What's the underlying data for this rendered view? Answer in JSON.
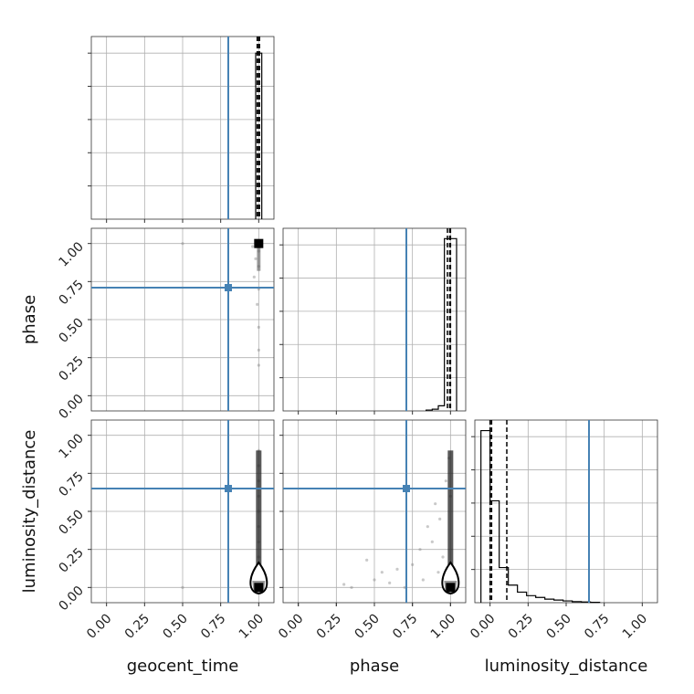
{
  "chart_data": {
    "type": "corner",
    "parameters": [
      "geocent_time",
      "phase",
      "luminosity_distance"
    ],
    "axis_range": [
      -0.1,
      1.1
    ],
    "ticks": [
      0.0,
      0.25,
      0.5,
      0.75,
      1.0
    ],
    "tick_labels": [
      "0.00",
      "0.25",
      "0.50",
      "0.75",
      "1.00"
    ],
    "truths": {
      "geocent_time": 0.8,
      "phase": 0.71,
      "luminosity_distance": 0.65
    },
    "truth_color": "#4682b4",
    "grid": true,
    "quantile_lines": {
      "geocent_time": [
        0.99,
        1.0,
        1.005
      ],
      "phase": [
        0.98,
        0.995,
        1.0
      ],
      "luminosity_distance": [
        0.0,
        0.01,
        0.11
      ]
    },
    "histograms": {
      "geocent_time": {
        "bin_edges": [
          0.98,
          1.0,
          1.02
        ],
        "counts": [
          100,
          100
        ],
        "ymax": 110
      },
      "phase": {
        "bin_edges": [
          0.84,
          0.88,
          0.92,
          0.96,
          1.0,
          1.04
        ],
        "counts": [
          0.5,
          1,
          3,
          100,
          100
        ],
        "ymax": 106
      },
      "luminosity_distance": {
        "bin_edges": [
          -0.06,
          0.0,
          0.06,
          0.12,
          0.18,
          0.24,
          0.3,
          0.36,
          0.42,
          0.48,
          0.54,
          0.6,
          0.66,
          0.72
        ],
        "counts": [
          98,
          58,
          20,
          10,
          6,
          4,
          3,
          2,
          1.5,
          1,
          0.6,
          0.4,
          0.2
        ],
        "ymax": 104
      }
    },
    "marker_points": [
      {
        "x_param": "geocent_time",
        "y_param": "phase",
        "x": 1.0,
        "y": 1.0
      },
      {
        "x_param": "geocent_time",
        "y_param": "luminosity_distance",
        "x": 1.0,
        "y": 0.0
      },
      {
        "x_param": "phase",
        "y_param": "luminosity_distance",
        "x": 1.0,
        "y": 0.0
      }
    ],
    "scatter_samples": {
      "geocent_time_phase": [
        [
          0.5,
          1.0
        ],
        [
          0.96,
          0.98
        ],
        [
          0.98,
          0.9
        ],
        [
          1.0,
          0.85
        ],
        [
          1.0,
          0.7
        ],
        [
          0.99,
          0.6
        ],
        [
          1.0,
          0.45
        ],
        [
          1.0,
          0.3
        ],
        [
          1.0,
          0.2
        ],
        [
          0.97,
          0.78
        ],
        [
          1.0,
          0.95
        ]
      ],
      "geocent_time_luminosity_distance": [
        [
          0.5,
          0.0
        ],
        [
          1.0,
          0.9
        ],
        [
          1.0,
          0.8
        ],
        [
          1.0,
          0.7
        ],
        [
          1.0,
          0.6
        ],
        [
          1.0,
          0.5
        ],
        [
          1.0,
          0.4
        ],
        [
          1.0,
          0.3
        ],
        [
          1.0,
          0.2
        ],
        [
          0.98,
          0.05
        ],
        [
          0.95,
          0.02
        ]
      ],
      "phase_luminosity_distance": [
        [
          0.3,
          0.02
        ],
        [
          0.35,
          0.0
        ],
        [
          0.5,
          0.05
        ],
        [
          0.55,
          0.1
        ],
        [
          0.6,
          0.03
        ],
        [
          0.75,
          0.15
        ],
        [
          0.8,
          0.25
        ],
        [
          0.85,
          0.4
        ],
        [
          0.9,
          0.55
        ],
        [
          0.95,
          0.2
        ],
        [
          0.97,
          0.7
        ],
        [
          0.99,
          0.85
        ],
        [
          1.0,
          0.6
        ],
        [
          0.92,
          0.1
        ],
        [
          0.88,
          0.3
        ],
        [
          0.7,
          0.0
        ],
        [
          0.45,
          0.18
        ],
        [
          0.65,
          0.12
        ],
        [
          0.82,
          0.05
        ],
        [
          0.93,
          0.45
        ]
      ]
    }
  }
}
